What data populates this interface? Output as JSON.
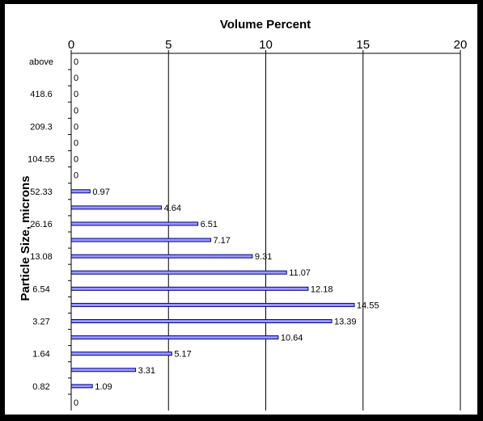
{
  "chart_data": {
    "type": "bar",
    "orientation": "horizontal",
    "title": "",
    "xlabel": "Volume Percent",
    "ylabel": "Particle Size, microns",
    "xlim": [
      0,
      20
    ],
    "xticks": [
      0,
      5,
      10,
      15,
      20
    ],
    "x_axis_position": "top",
    "grid": "vertical major gridlines",
    "legend": "none",
    "categories": [
      "above",
      "",
      "418.6",
      "",
      "209.3",
      "",
      "104.55",
      "",
      "52.33",
      "",
      "26.16",
      "",
      "13.08",
      "",
      "6.54",
      "",
      "3.27",
      "",
      "1.64",
      "",
      "0.82",
      ""
    ],
    "values": [
      0,
      0,
      0,
      0,
      0,
      0,
      0,
      0,
      0.97,
      4.64,
      6.51,
      7.17,
      9.31,
      11.07,
      12.18,
      14.55,
      13.39,
      10.64,
      5.17,
      3.31,
      1.09,
      0
    ],
    "data_labels": [
      "0",
      "0",
      "0",
      "0",
      "0",
      "0",
      "0",
      "0",
      "0.97",
      "4.64",
      "6.51",
      "7.17",
      "9.31",
      "11.07",
      "12.18",
      "14.55",
      "13.39",
      "10.64",
      "5.17",
      "3.31",
      "1.09",
      "0"
    ],
    "colors": {
      "bar_fill": "#9999ff",
      "bar_stroke": "#000080",
      "background": "#ffffff",
      "border": "#000000",
      "gridline": "#000000"
    }
  }
}
